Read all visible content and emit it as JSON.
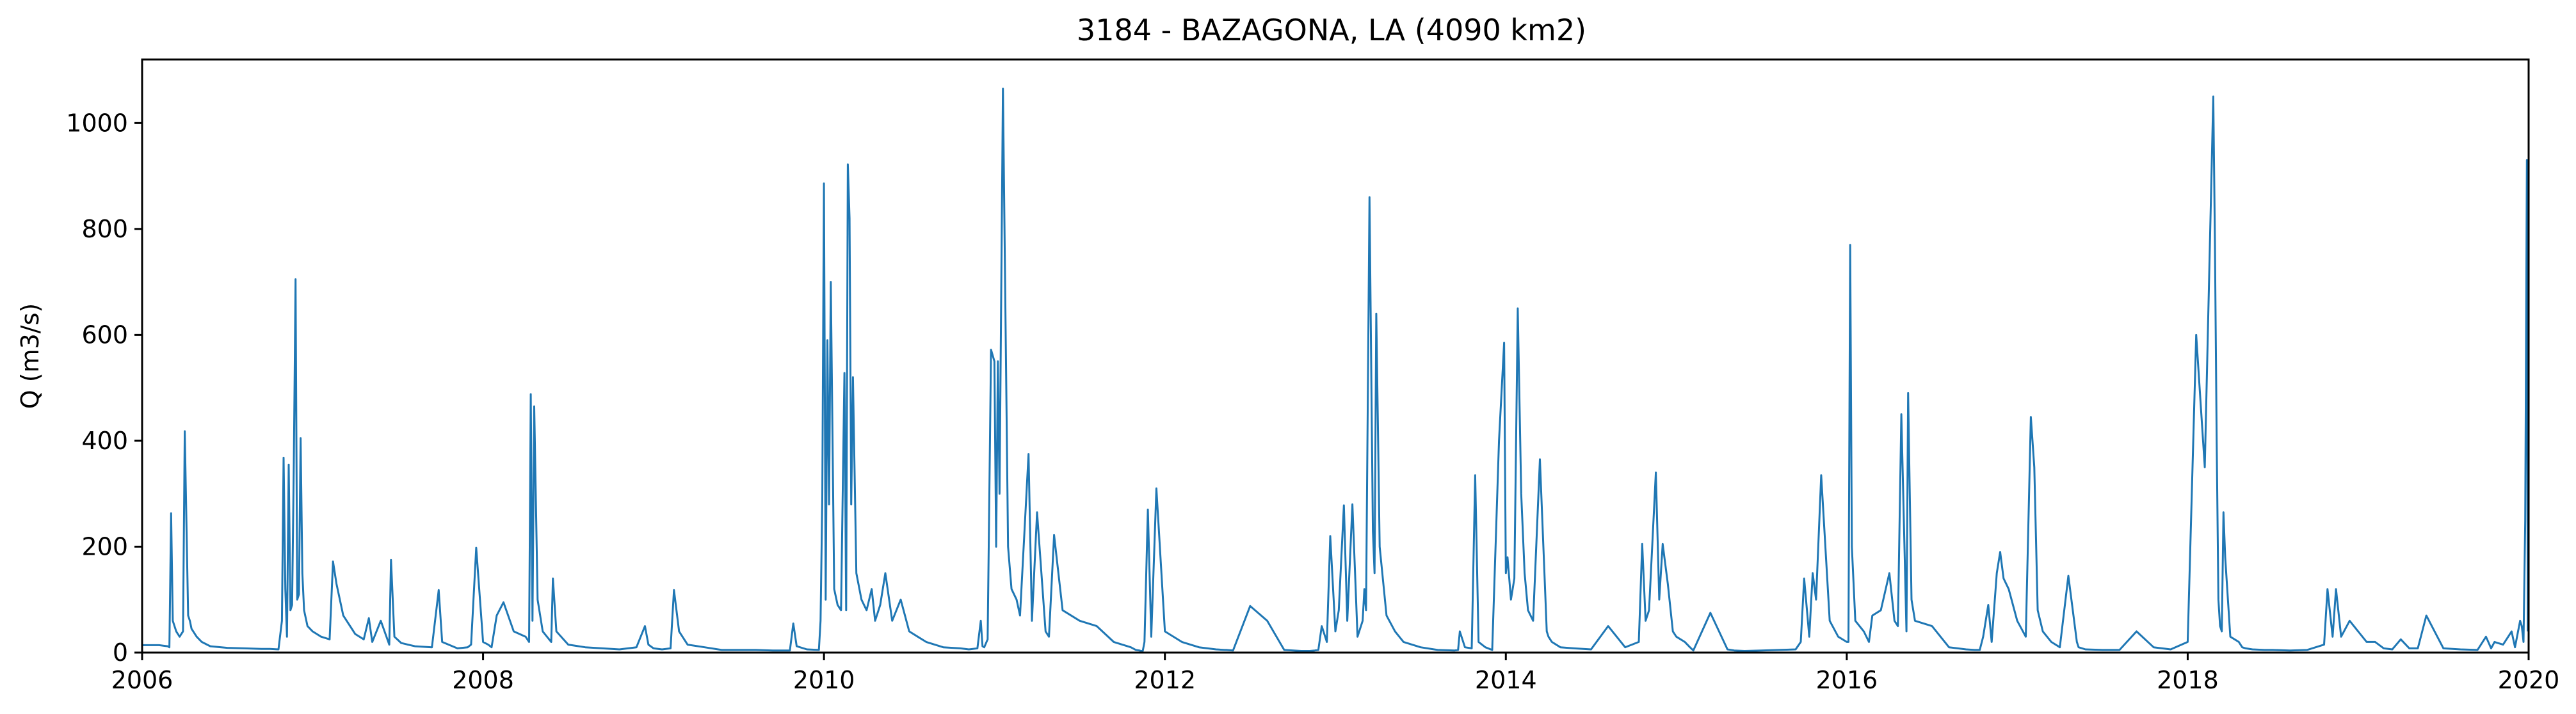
{
  "chart_data": {
    "type": "line",
    "title": "3184 - BAZAGONA, LA (4090 km2)",
    "xlabel": "",
    "ylabel": "Q (m3/s)",
    "xlim": [
      2006,
      2020
    ],
    "ylim": [
      0,
      1120
    ],
    "x_ticks": [
      "2006",
      "2008",
      "2010",
      "2012",
      "2014",
      "2016",
      "2018",
      "2020"
    ],
    "y_ticks": [
      "0",
      "200",
      "400",
      "600",
      "800",
      "1000"
    ],
    "grid": false,
    "legend": "none",
    "series": [
      {
        "color": "#1f77b4",
        "x": [
          2006.0,
          2006.1,
          2006.15,
          2006.16,
          2006.17,
          2006.18,
          2006.2,
          2006.22,
          2006.23,
          2006.24,
          2006.25,
          2006.27,
          2006.28,
          2006.29,
          2006.32,
          2006.35,
          2006.4,
          2006.5,
          2006.6,
          2006.7,
          2006.75,
          2006.8,
          2006.82,
          2006.83,
          2006.84,
          2006.85,
          2006.86,
          2006.87,
          2006.88,
          2006.89,
          2006.9,
          2006.91,
          2006.92,
          2006.93,
          2006.94,
          2006.95,
          2006.97,
          2007.0,
          2007.05,
          2007.1,
          2007.12,
          2007.14,
          2007.18,
          2007.25,
          2007.3,
          2007.33,
          2007.35,
          2007.4,
          2007.45,
          2007.46,
          2007.48,
          2007.52,
          2007.6,
          2007.7,
          2007.74,
          2007.76,
          2007.85,
          2007.91,
          2007.93,
          2007.96,
          2008.0,
          2008.03,
          2008.05,
          2008.08,
          2008.12,
          2008.18,
          2008.25,
          2008.27,
          2008.28,
          2008.29,
          2008.3,
          2008.32,
          2008.35,
          2008.4,
          2008.41,
          2008.43,
          2008.5,
          2008.6,
          2008.7,
          2008.8,
          2008.9,
          2008.95,
          2008.97,
          2009.0,
          2009.05,
          2009.1,
          2009.12,
          2009.15,
          2009.2,
          2009.3,
          2009.4,
          2009.5,
          2009.6,
          2009.7,
          2009.8,
          2009.82,
          2009.84,
          2009.9,
          2009.97,
          2009.98,
          2009.99,
          2010.0,
          2010.01,
          2010.02,
          2010.03,
          2010.04,
          2010.06,
          2010.08,
          2010.1,
          2010.12,
          2010.13,
          2010.14,
          2010.15,
          2010.16,
          2010.17,
          2010.19,
          2010.22,
          2010.25,
          2010.28,
          2010.3,
          2010.33,
          2010.36,
          2010.4,
          2010.45,
          2010.5,
          2010.55,
          2010.6,
          2010.7,
          2010.8,
          2010.85,
          2010.9,
          2010.92,
          2010.93,
          2010.94,
          2010.96,
          2010.98,
          2011.0,
          2011.01,
          2011.02,
          2011.03,
          2011.05,
          2011.08,
          2011.1,
          2011.13,
          2011.15,
          2011.2,
          2011.22,
          2011.25,
          2011.3,
          2011.32,
          2011.35,
          2011.4,
          2011.5,
          2011.6,
          2011.7,
          2011.8,
          2011.83,
          2011.85,
          2011.86,
          2011.87,
          2011.88,
          2011.9,
          2011.92,
          2011.95,
          2012.0,
          2012.1,
          2012.2,
          2012.3,
          2012.35,
          2012.36,
          2012.4,
          2012.5,
          2012.6,
          2012.7,
          2012.8,
          2012.85,
          2012.88,
          2012.9,
          2012.92,
          2012.95,
          2012.97,
          2013.0,
          2013.02,
          2013.05,
          2013.07,
          2013.1,
          2013.13,
          2013.16,
          2013.17,
          2013.18,
          2013.2,
          2013.22,
          2013.23,
          2013.24,
          2013.26,
          2013.3,
          2013.35,
          2013.4,
          2013.5,
          2013.6,
          2013.7,
          2013.72,
          2013.73,
          2013.76,
          2013.8,
          2013.82,
          2013.84,
          2013.88,
          2013.92,
          2013.96,
          2013.99,
          2014.0,
          2014.01,
          2014.03,
          2014.05,
          2014.07,
          2014.09,
          2014.11,
          2014.13,
          2014.16,
          2014.2,
          2014.24,
          2014.25,
          2014.27,
          2014.32,
          2014.4,
          2014.5,
          2014.6,
          2014.7,
          2014.78,
          2014.8,
          2014.82,
          2014.84,
          2014.88,
          2014.9,
          2014.92,
          2014.95,
          2014.98,
          2015.0,
          2015.05,
          2015.08,
          2015.1,
          2015.2,
          2015.3,
          2015.34,
          2015.4,
          2015.5,
          2015.6,
          2015.7,
          2015.73,
          2015.75,
          2015.78,
          2015.8,
          2015.82,
          2015.85,
          2015.9,
          2015.95,
          2016.0,
          2016.01,
          2016.02,
          2016.03,
          2016.05,
          2016.1,
          2016.13,
          2016.15,
          2016.2,
          2016.25,
          2016.28,
          2016.3,
          2016.32,
          2016.35,
          2016.36,
          2016.38,
          2016.4,
          2016.5,
          2016.6,
          2016.7,
          2016.75,
          2016.78,
          2016.8,
          2016.83,
          2016.85,
          2016.88,
          2016.9,
          2016.92,
          2016.95,
          2017.0,
          2017.05,
          2017.08,
          2017.1,
          2017.12,
          2017.15,
          2017.2,
          2017.25,
          2017.3,
          2017.35,
          2017.36,
          2017.4,
          2017.5,
          2017.6,
          2017.7,
          2017.8,
          2017.9,
          2018.0,
          2018.05,
          2018.1,
          2018.15,
          2018.16,
          2018.17,
          2018.18,
          2018.19,
          2018.2,
          2018.21,
          2018.22,
          2018.25,
          2018.3,
          2018.32,
          2018.34,
          2018.38,
          2018.45,
          2018.5,
          2018.6,
          2018.7,
          2018.8,
          2018.82,
          2018.85,
          2018.87,
          2018.9,
          2018.95,
          2019.0,
          2019.05,
          2019.1,
          2019.15,
          2019.2,
          2019.25,
          2019.3,
          2019.35,
          2019.4,
          2019.5,
          2019.6,
          2019.7,
          2019.75,
          2019.78,
          2019.8,
          2019.85,
          2019.9,
          2019.92,
          2019.95,
          2019.96,
          2019.97,
          2019.98,
          2019.99,
          2019.995
        ],
        "y": [
          14,
          14,
          12,
          10,
          263,
          60,
          40,
          30,
          35,
          40,
          418,
          70,
          60,
          45,
          30,
          20,
          12,
          9,
          8,
          7,
          7,
          6,
          60,
          368,
          120,
          30,
          355,
          80,
          90,
          360,
          705,
          100,
          110,
          405,
          150,
          80,
          50,
          40,
          30,
          25,
          172,
          130,
          70,
          35,
          25,
          65,
          20,
          60,
          15,
          175,
          30,
          18,
          12,
          10,
          118,
          20,
          8,
          10,
          15,
          198,
          20,
          15,
          10,
          70,
          95,
          40,
          30,
          20,
          488,
          60,
          465,
          100,
          40,
          20,
          140,
          40,
          15,
          10,
          8,
          6,
          10,
          50,
          15,
          8,
          6,
          8,
          118,
          40,
          15,
          10,
          5,
          5,
          5,
          4,
          4,
          55,
          12,
          6,
          5,
          60,
          290,
          886,
          100,
          590,
          280,
          700,
          120,
          90,
          80,
          528,
          80,
          922,
          820,
          280,
          520,
          150,
          100,
          80,
          120,
          60,
          90,
          150,
          60,
          100,
          40,
          30,
          20,
          10,
          8,
          6,
          8,
          60,
          12,
          10,
          25,
          572,
          550,
          200,
          550,
          300,
          1065,
          200,
          120,
          100,
          70,
          375,
          60,
          265,
          40,
          30,
          222,
          80,
          60,
          50,
          20,
          10,
          5,
          4,
          3,
          3,
          20,
          270,
          30,
          310,
          40,
          20,
          10,
          6,
          5,
          5,
          4,
          88,
          60,
          5,
          3,
          3,
          4,
          5,
          50,
          20,
          220,
          40,
          80,
          278,
          60,
          280,
          30,
          60,
          120,
          80,
          860,
          230,
          150,
          640,
          200,
          70,
          40,
          20,
          10,
          5,
          4,
          5,
          40,
          10,
          8,
          335,
          20,
          10,
          5,
          400,
          585,
          150,
          180,
          100,
          140,
          650,
          300,
          150,
          80,
          60,
          365,
          40,
          30,
          20,
          10,
          8,
          6,
          50,
          10,
          20,
          205,
          60,
          80,
          340,
          100,
          205,
          130,
          40,
          30,
          20,
          10,
          4,
          75,
          6,
          4,
          3,
          4,
          5,
          6,
          20,
          140,
          30,
          150,
          100,
          335,
          60,
          30,
          20,
          20,
          770,
          200,
          60,
          40,
          20,
          70,
          80,
          150,
          60,
          50,
          450,
          40,
          490,
          100,
          60,
          50,
          10,
          6,
          5,
          5,
          30,
          90,
          20,
          150,
          190,
          140,
          120,
          60,
          30,
          445,
          350,
          80,
          40,
          20,
          10,
          145,
          20,
          10,
          6,
          5,
          5,
          40,
          10,
          6,
          20,
          600,
          350,
          1050,
          770,
          400,
          100,
          50,
          40,
          265,
          180,
          30,
          20,
          10,
          8,
          6,
          5,
          5,
          4,
          5,
          15,
          120,
          30,
          120,
          30,
          60,
          40,
          20,
          20,
          8,
          6,
          25,
          8,
          8,
          70,
          8,
          6,
          5,
          30,
          8,
          20,
          15,
          40,
          10,
          60,
          50,
          20,
          250,
          930,
          40
        ]
      }
    ]
  }
}
